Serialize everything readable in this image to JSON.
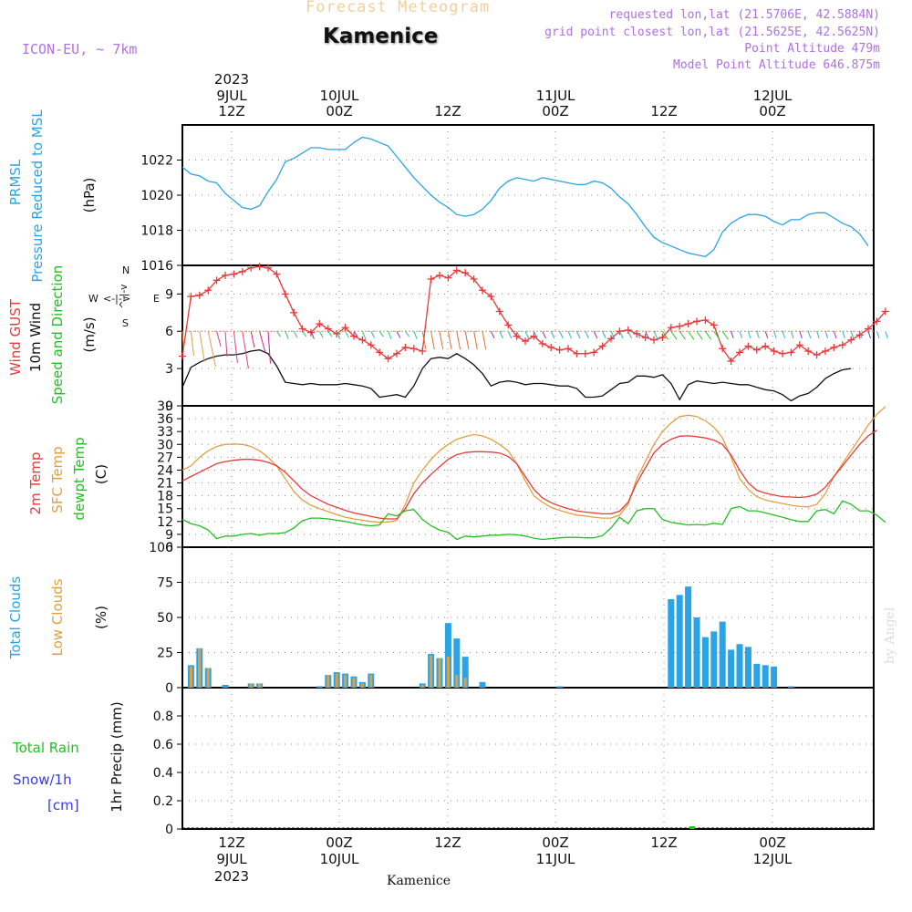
{
  "header": {
    "title": "Forecast Meteogram",
    "location": "Kamenice",
    "model": "ICON-EU, ~ 7km",
    "requested": "requested lon,lat (21.5706E, 42.5884N)",
    "closest": "grid point closest lon,lat (21.5625E, 42.5625N)",
    "point_altitude": "Point Altitude 479m",
    "model_altitude": "Model Point Altitude 646.875m"
  },
  "watermark": "by Angel",
  "station_bottom": "Kamenice",
  "colors": {
    "pressure": "#2aa4e6",
    "gust": "#e83a3a",
    "wind": "#111111",
    "temp2m": "#e83a3a",
    "sfc": "#e0a040",
    "dewpt": "#22c022",
    "total_clouds": "#2aa4e6",
    "low_clouds": "#e0a040",
    "rain": "#22c022",
    "snow": "#3a3ae8",
    "purple": "#b070e0"
  },
  "chart_data": [
    {
      "id": "pressure",
      "type": "line",
      "ylabel_lines": [
        "PRMSL",
        "Pressure Reduced to MSL"
      ],
      "unit": "(hPa)",
      "ylim": [
        1016,
        1024
      ],
      "yticks": [
        "1016",
        "1018",
        "1020",
        "1022"
      ],
      "x_hours_from_9jul12z_start": -3,
      "series": [
        {
          "values": [
            1021.6,
            1021.2,
            1021.1,
            1020.8,
            1020.7,
            1020.1,
            1019.7,
            1019.3,
            1019.2,
            1019.4,
            1020.2,
            1020.9,
            1021.9,
            1022.1,
            1022.4,
            1022.7,
            1022.7,
            1022.6,
            1022.6,
            1022.6,
            1023.0,
            1023.3,
            1023.2,
            1023.0,
            1022.8,
            1022.2,
            1021.6,
            1021.0,
            1020.5,
            1020.0,
            1019.6,
            1019.3,
            1018.9,
            1018.8,
            1018.9,
            1019.2,
            1019.7,
            1020.4,
            1020.8,
            1021.0,
            1020.9,
            1020.8,
            1021.0,
            1020.9,
            1020.8,
            1020.7,
            1020.6,
            1020.6,
            1020.8,
            1020.7,
            1020.4,
            1019.9,
            1019.5,
            1018.9,
            1018.2,
            1017.6,
            1017.3,
            1017.1,
            1016.9,
            1016.7,
            1016.6,
            1016.5,
            1016.9,
            1017.9,
            1018.4,
            1018.7,
            1018.9,
            1018.9,
            1018.8,
            1018.5,
            1018.3,
            1018.6,
            1018.6,
            1018.9,
            1019.0,
            1019.0,
            1018.7,
            1018.4,
            1018.2,
            1017.8,
            1017.1
          ]
        }
      ]
    },
    {
      "id": "wind",
      "type": "line",
      "ylabel_lines": [
        "Wind GUST",
        "10m Wind",
        "Speed and Direction"
      ],
      "unit": "(m/s)",
      "compass": {
        "w": "W",
        "e": "E",
        "n": "N",
        "s": "S",
        "w_arrow": "<-|->",
        "n_arrow": "^-|-v"
      },
      "ylim": [
        0,
        11.3
      ],
      "yticks": [
        "0",
        "3",
        "6",
        "9"
      ],
      "series": [
        {
          "name": "Wind GUST",
          "values": [
            4.0,
            8.8,
            8.9,
            9.3,
            10.1,
            10.5,
            10.6,
            10.8,
            11.1,
            11.2,
            11.1,
            10.6,
            9.0,
            7.5,
            6.2,
            5.9,
            6.6,
            6.2,
            5.8,
            6.3,
            5.6,
            5.3,
            4.9,
            4.3,
            3.8,
            4.2,
            4.7,
            4.6,
            4.4,
            10.2,
            10.5,
            10.3,
            10.9,
            10.7,
            10.2,
            9.3,
            8.8,
            7.6,
            6.5,
            5.6,
            5.2,
            5.6,
            5.0,
            4.7,
            4.5,
            4.6,
            4.2,
            4.2,
            4.3,
            4.8,
            5.4,
            6.0,
            6.1,
            5.8,
            5.5,
            5.3,
            5.5,
            6.3,
            6.4,
            6.6,
            6.8,
            6.9,
            6.5,
            4.6,
            3.6,
            4.3,
            4.8,
            4.5,
            4.8,
            4.4,
            4.2,
            4.3,
            4.9,
            4.4,
            4.1,
            4.4,
            4.7,
            4.9,
            5.3,
            5.7,
            6.2,
            6.8,
            7.6
          ]
        },
        {
          "name": "10m Wind",
          "values": [
            1.5,
            3.1,
            3.5,
            3.8,
            4.0,
            4.1,
            4.1,
            4.2,
            4.4,
            4.5,
            4.2,
            3.2,
            1.9,
            1.8,
            1.7,
            1.8,
            1.7,
            1.7,
            1.7,
            1.8,
            1.7,
            1.6,
            1.4,
            0.7,
            0.8,
            0.9,
            0.7,
            1.6,
            3.0,
            3.8,
            3.9,
            3.8,
            4.2,
            3.8,
            3.3,
            2.6,
            1.6,
            1.9,
            2.0,
            1.9,
            1.7,
            1.8,
            1.8,
            1.7,
            1.6,
            1.6,
            1.4,
            0.7,
            0.7,
            0.8,
            1.3,
            1.8,
            1.9,
            2.4,
            2.4,
            2.3,
            2.5,
            1.8,
            0.5,
            1.7,
            2.0,
            1.9,
            1.8,
            1.9,
            1.8,
            1.7,
            1.7,
            1.5,
            1.3,
            1.2,
            0.9,
            0.4,
            0.8,
            1.0,
            1.5,
            2.2,
            2.6,
            2.9,
            3.0
          ]
        }
      ]
    },
    {
      "id": "temperature",
      "type": "line",
      "ylabel_lines": [
        "2m Temp",
        "SFC Temp",
        "dewpt Temp"
      ],
      "unit": "(C)",
      "ylim": [
        6,
        39
      ],
      "yticks": [
        "6",
        "9",
        "12",
        "15",
        "18",
        "21",
        "24",
        "27",
        "30",
        "33",
        "36",
        "39"
      ],
      "series": [
        {
          "name": "2m Temp",
          "values": [
            21.5,
            22.5,
            23.5,
            24.5,
            25.5,
            26.0,
            26.3,
            26.5,
            26.5,
            26.3,
            25.8,
            25.0,
            23.5,
            21.5,
            19.5,
            18.0,
            17.0,
            16.0,
            15.3,
            14.6,
            14.0,
            13.6,
            13.2,
            12.8,
            12.6,
            12.6,
            15.0,
            18.5,
            21.0,
            23.0,
            24.8,
            26.5,
            27.6,
            28.1,
            28.3,
            28.3,
            28.2,
            28.0,
            27.2,
            25.5,
            22.5,
            19.5,
            17.5,
            16.4,
            15.6,
            15.0,
            14.5,
            14.2,
            14.0,
            13.8,
            13.8,
            14.4,
            16.5,
            21.0,
            24.5,
            28.0,
            30.0,
            31.2,
            31.9,
            32.0,
            31.8,
            31.5,
            31.0,
            30.0,
            27.5,
            24.0,
            21.0,
            19.3,
            18.6,
            18.2,
            17.8,
            17.7,
            17.6,
            17.8,
            18.4,
            20.0,
            22.5,
            25.0,
            27.5,
            30.0,
            32.0,
            33.3
          ]
        },
        {
          "name": "SFC Temp",
          "values": [
            24.0,
            25.0,
            27.0,
            28.5,
            29.5,
            30.0,
            30.1,
            30.0,
            29.5,
            28.5,
            27.0,
            25.0,
            22.0,
            19.0,
            17.0,
            15.8,
            15.0,
            14.3,
            13.6,
            13.0,
            12.6,
            12.3,
            12.0,
            11.8,
            11.9,
            12.2,
            16.0,
            21.0,
            24.0,
            26.5,
            28.5,
            30.0,
            31.2,
            31.8,
            32.3,
            32.0,
            31.2,
            30.0,
            28.5,
            25.5,
            21.5,
            18.0,
            16.5,
            15.3,
            14.6,
            14.0,
            13.5,
            13.3,
            13.0,
            12.8,
            12.8,
            13.5,
            16.0,
            22.0,
            26.0,
            30.0,
            33.0,
            35.0,
            36.5,
            36.8,
            36.5,
            35.5,
            34.0,
            31.5,
            27.0,
            22.0,
            19.5,
            17.8,
            17.0,
            16.6,
            16.2,
            15.8,
            15.5,
            15.4,
            16.0,
            18.5,
            22.5,
            25.5,
            28.5,
            31.5,
            34.5,
            37.0,
            38.8
          ]
        },
        {
          "name": "dewpt Temp",
          "values": [
            12.5,
            11.5,
            11.0,
            10.0,
            8.0,
            8.6,
            8.6,
            9.0,
            9.2,
            8.8,
            9.2,
            9.2,
            9.4,
            10.5,
            12.2,
            12.8,
            12.8,
            12.6,
            12.3,
            12.0,
            11.6,
            11.2,
            11.0,
            11.2,
            13.8,
            13.3,
            14.5,
            14.8,
            12.5,
            11.0,
            10.0,
            9.5,
            7.8,
            8.6,
            8.4,
            8.6,
            8.8,
            8.8,
            9.0,
            8.9,
            8.6,
            8.1,
            7.8,
            8.0,
            8.2,
            8.3,
            8.3,
            8.2,
            8.2,
            8.7,
            10.5,
            13.0,
            11.5,
            14.5,
            15.0,
            15.0,
            12.5,
            11.8,
            11.5,
            11.2,
            11.3,
            11.2,
            11.6,
            11.3,
            15.0,
            15.5,
            14.5,
            14.5,
            14.0,
            13.5,
            13.0,
            12.4,
            12.0,
            12.0,
            14.5,
            14.8,
            13.8,
            16.8,
            16.0,
            14.5,
            14.5,
            13.5,
            11.8
          ]
        }
      ]
    },
    {
      "id": "clouds",
      "type": "bar",
      "ylabel_lines": [
        "Total Clouds",
        "Low Clouds"
      ],
      "unit": "(%)",
      "ylim": [
        0,
        100
      ],
      "yticks": [
        "0",
        "25",
        "50",
        "75",
        "100"
      ],
      "series": [
        {
          "name": "Total Clouds",
          "values": [
            0,
            16,
            28,
            14,
            0,
            2,
            0,
            0,
            3,
            3,
            0,
            0,
            0,
            0,
            0,
            0,
            1,
            9,
            11,
            10,
            8,
            4,
            10,
            0,
            0,
            0,
            0,
            0,
            3,
            24,
            21,
            46,
            35,
            22,
            0,
            4,
            0,
            0,
            0,
            0,
            0,
            0,
            0,
            0,
            1,
            0,
            0,
            0,
            0,
            0,
            0,
            0,
            0,
            0,
            0,
            0,
            0,
            63,
            66,
            72,
            50,
            36,
            40,
            47,
            27,
            31,
            29,
            17,
            16,
            15,
            0,
            1,
            0,
            0,
            0,
            0,
            0,
            0,
            0,
            0,
            0
          ]
        },
        {
          "name": "Low Clouds",
          "values": [
            0,
            15,
            28,
            14,
            0,
            0,
            0,
            0,
            3,
            3,
            0,
            0,
            0,
            0,
            0,
            0,
            0,
            9,
            10,
            9,
            7,
            3,
            9,
            0,
            0,
            0,
            0,
            0,
            2,
            23,
            21,
            22,
            9,
            7,
            0,
            0,
            0,
            0,
            0,
            0,
            0,
            0,
            0,
            0,
            0,
            0,
            0,
            0,
            0,
            0,
            0,
            0,
            0,
            0,
            0,
            0,
            0,
            0,
            0,
            0,
            0,
            0,
            0,
            0,
            0,
            0,
            0,
            0,
            0,
            0,
            0,
            0,
            0,
            0,
            0,
            0,
            0,
            0,
            0,
            0,
            0
          ]
        }
      ]
    },
    {
      "id": "precip",
      "type": "bar",
      "ylabel_lines": [
        "1hr Precip (mm)"
      ],
      "legend": {
        "rain": "Total  Rain",
        "snow": "Snow/1h",
        "snow_unit": "[cm]"
      },
      "ylim": [
        0,
        1.0
      ],
      "yticks": [
        "0",
        "0.2",
        "0.4",
        "0.6",
        "0.8"
      ],
      "series": [
        {
          "name": "Total Rain",
          "values": [
            {
              "x": "11JUL 15Z",
              "y": 0.01
            }
          ]
        },
        {
          "name": "Snow/1h",
          "values": []
        }
      ]
    }
  ],
  "time_axis": {
    "top": [
      {
        "line1": "2023",
        "line2": "9JUL",
        "line3": "12Z"
      },
      {
        "line2": "10JUL",
        "line3": "00Z"
      },
      {
        "line3": "12Z"
      },
      {
        "line2": "11JUL",
        "line3": "00Z"
      },
      {
        "line3": "12Z"
      },
      {
        "line2": "12JUL",
        "line3": "00Z"
      }
    ],
    "bottom": [
      {
        "line1": "12Z",
        "line2": "9JUL",
        "line3": "2023"
      },
      {
        "line1": "00Z",
        "line2": "10JUL"
      },
      {
        "line1": "12Z"
      },
      {
        "line1": "00Z",
        "line2": "11JUL"
      },
      {
        "line1": "12Z"
      },
      {
        "line1": "00Z",
        "line2": "12JUL"
      }
    ]
  }
}
